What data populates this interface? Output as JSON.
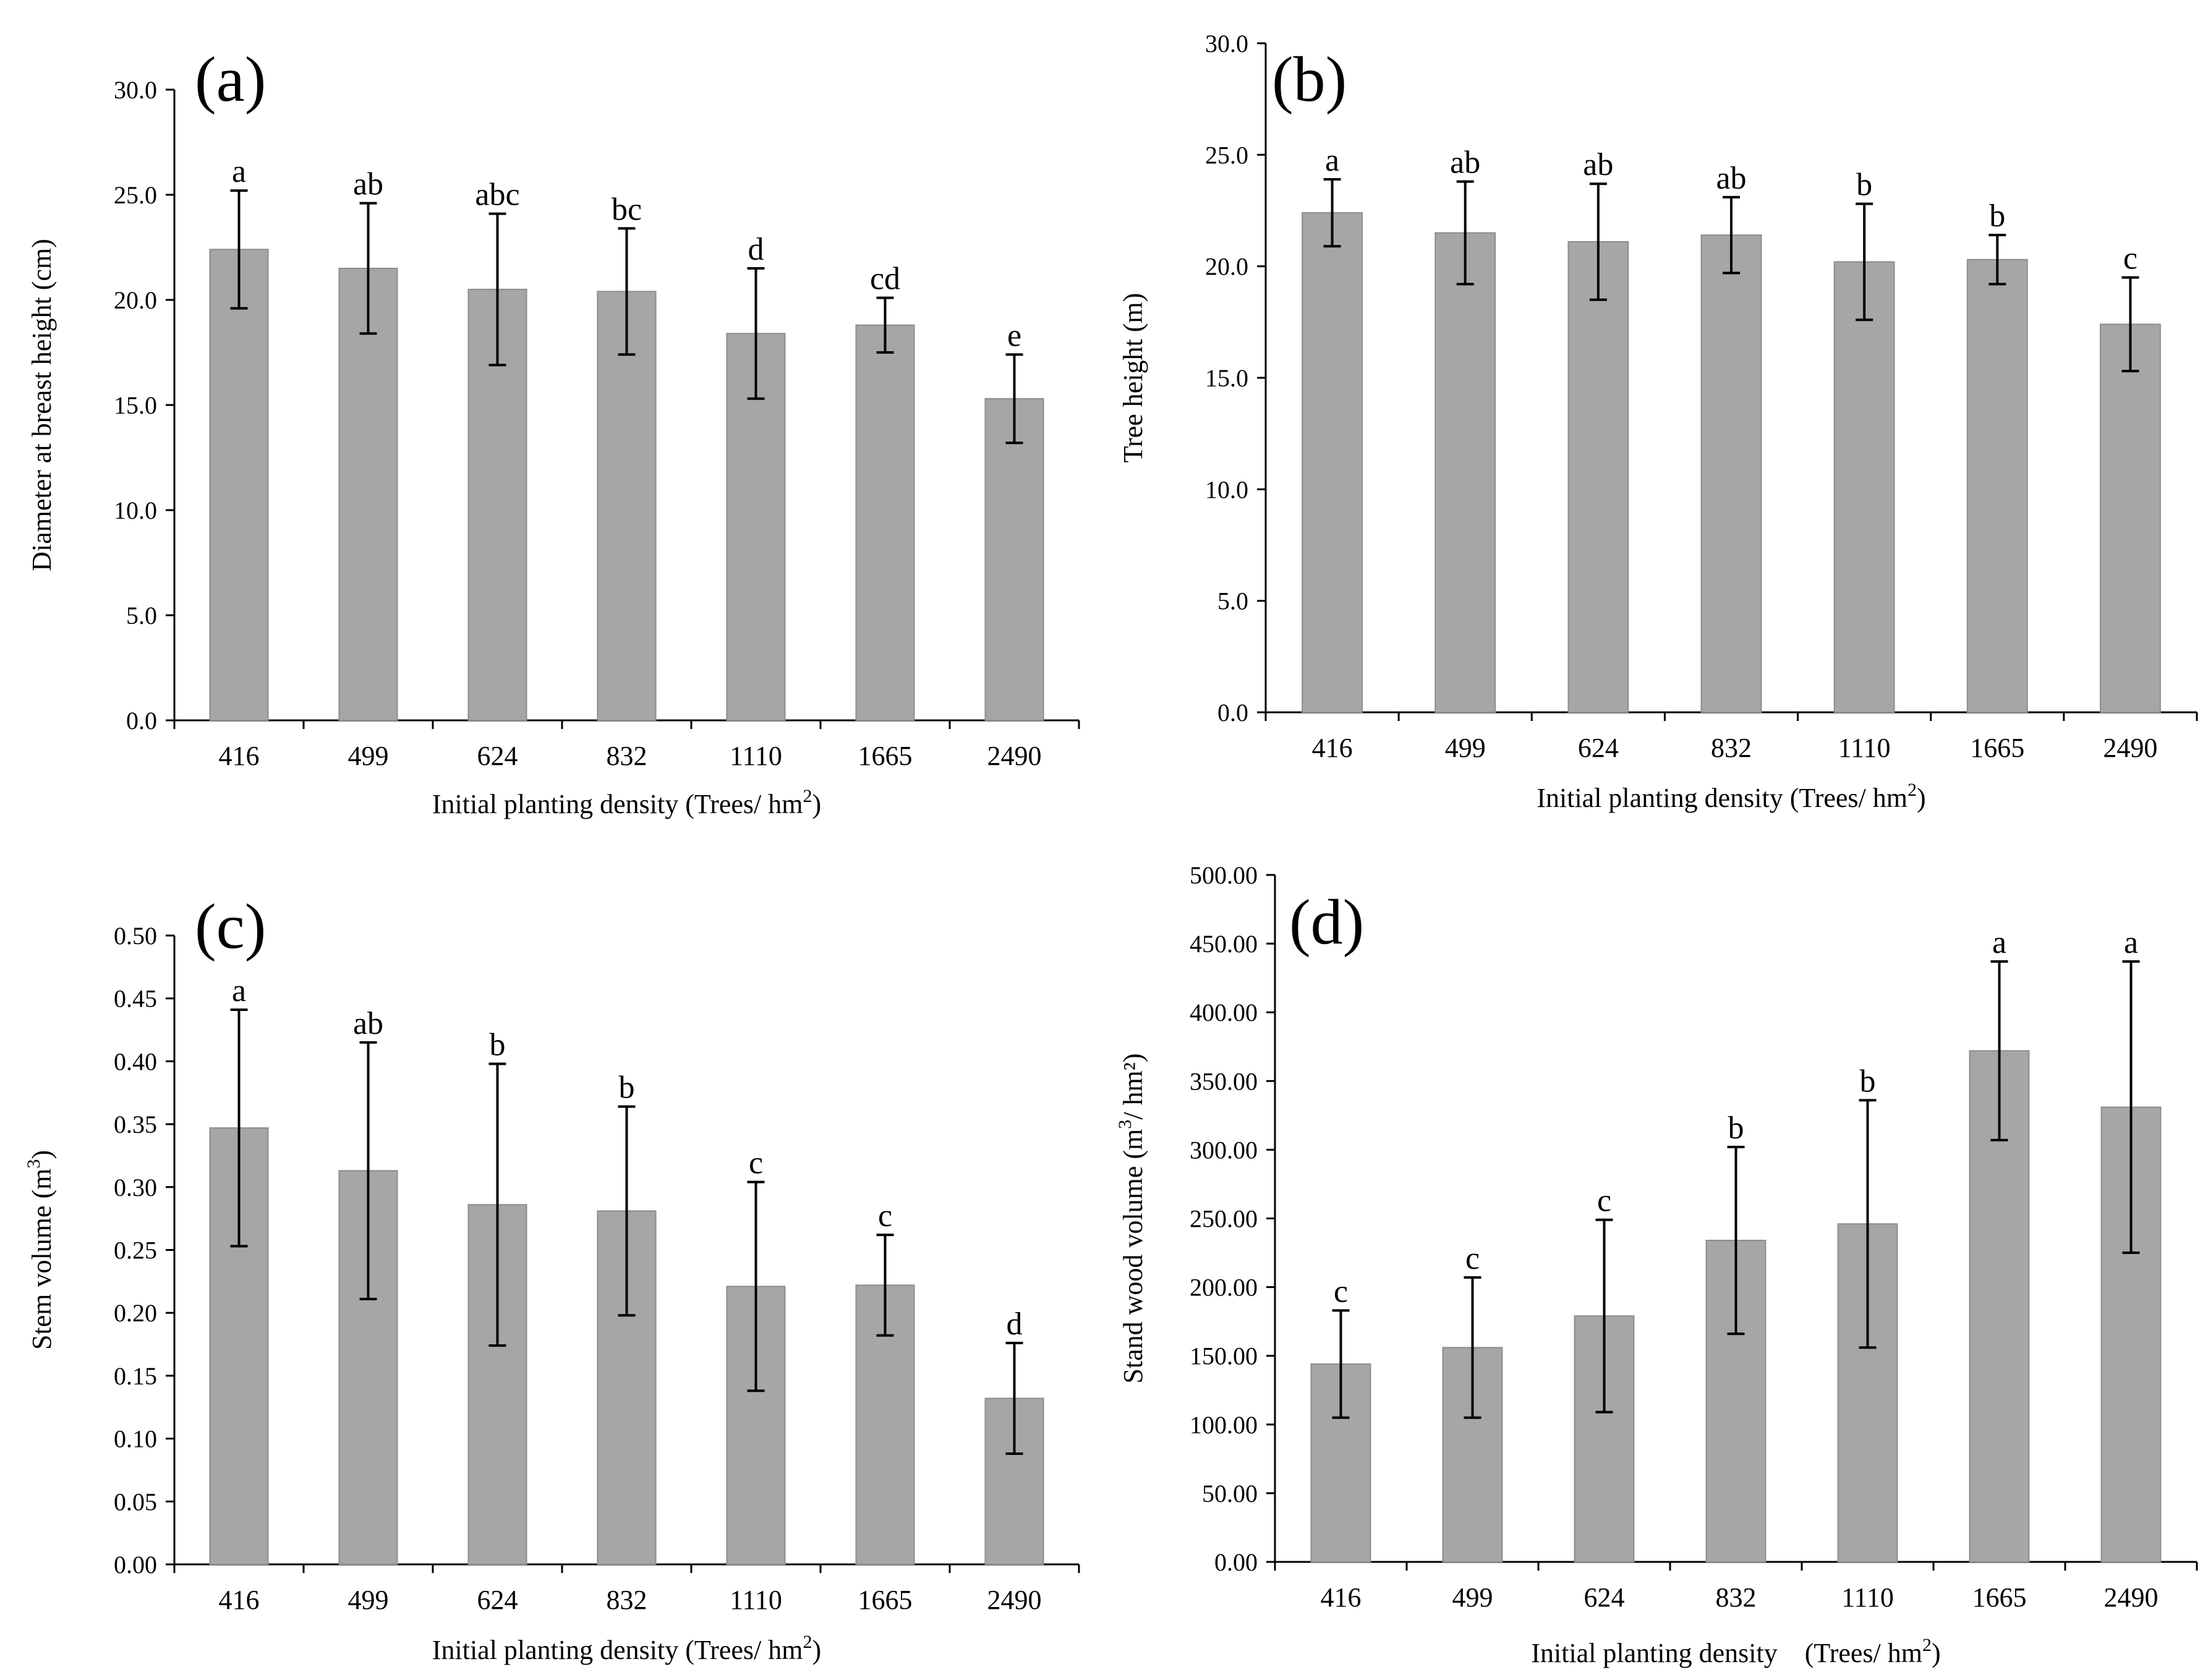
{
  "chart_data": [
    {
      "type": "bar",
      "panel_label": "(a)",
      "title": "",
      "xlabel": "Initial planting density (Trees/ hm",
      "xlabel_sup": "2",
      "xlabel_tail": ")",
      "ylabel": "Diameter at breast height (cm)",
      "ylabel_sup": "",
      "ylabel_tail": "",
      "categories": [
        "416",
        "499",
        "624",
        "832",
        "1110",
        "1665",
        "2490"
      ],
      "values": [
        22.4,
        21.5,
        20.5,
        20.4,
        18.4,
        18.8,
        15.3
      ],
      "errors": [
        2.8,
        3.1,
        3.6,
        3.0,
        3.1,
        1.3,
        2.1
      ],
      "significance": [
        "a",
        "ab",
        "abc",
        "bc",
        "d",
        "cd",
        "e"
      ],
      "ylim": [
        0,
        30
      ],
      "yticks": [
        "0.0",
        "5.0",
        "10.0",
        "15.0",
        "20.0",
        "25.0",
        "30.0"
      ],
      "bar_color": "#a6a6a6"
    },
    {
      "type": "bar",
      "panel_label": "(b)",
      "title": "",
      "xlabel": "Initial planting density (Trees/ hm",
      "xlabel_sup": "2",
      "xlabel_tail": ")",
      "ylabel": "Tree height (m)",
      "ylabel_sup": "",
      "ylabel_tail": "",
      "categories": [
        "416",
        "499",
        "624",
        "832",
        "1110",
        "1665",
        "2490"
      ],
      "values": [
        22.4,
        21.5,
        21.1,
        21.4,
        20.2,
        20.3,
        17.4
      ],
      "errors": [
        1.5,
        2.3,
        2.6,
        1.7,
        2.6,
        1.1,
        2.1
      ],
      "significance": [
        "a",
        "ab",
        "ab",
        "ab",
        "b",
        "b",
        "c"
      ],
      "ylim": [
        0,
        30
      ],
      "yticks": [
        "0.0",
        "5.0",
        "10.0",
        "15.0",
        "20.0",
        "25.0",
        "30.0"
      ],
      "bar_color": "#a6a6a6"
    },
    {
      "type": "bar",
      "panel_label": "(c)",
      "title": "",
      "xlabel": "Initial planting density (Trees/ hm",
      "xlabel_sup": "2",
      "xlabel_tail": ")",
      "ylabel": "Stem volume (m",
      "ylabel_sup": "3",
      "ylabel_tail": ")",
      "categories": [
        "416",
        "499",
        "624",
        "832",
        "1110",
        "1665",
        "2490"
      ],
      "values": [
        0.347,
        0.313,
        0.286,
        0.281,
        0.221,
        0.222,
        0.132
      ],
      "errors": [
        0.094,
        0.102,
        0.112,
        0.083,
        0.083,
        0.04,
        0.044
      ],
      "significance": [
        "a",
        "ab",
        "b",
        "b",
        "c",
        "c",
        "d"
      ],
      "ylim": [
        0,
        0.5
      ],
      "yticks": [
        "0.00",
        "0.05",
        "0.10",
        "0.15",
        "0.20",
        "0.25",
        "0.30",
        "0.35",
        "0.40",
        "0.45",
        "0.50"
      ],
      "bar_color": "#a6a6a6"
    },
    {
      "type": "bar",
      "panel_label": "(d)",
      "title": "",
      "xlabel": "Initial planting density (Trees/ hm",
      "xlabel_sup": "2",
      "xlabel_tail": ")",
      "ylabel": "Stand wood volume (m",
      "ylabel_sup": "3",
      "ylabel_tail": "/ hm²)",
      "categories": [
        "416",
        "499",
        "624",
        "832",
        "1110",
        "1665",
        "2490"
      ],
      "values": [
        144.0,
        156.0,
        179.0,
        234.0,
        246.0,
        372.0,
        331.0
      ],
      "errors": [
        39.0,
        51.0,
        70.0,
        68.0,
        90.0,
        65.0,
        106.0
      ],
      "significance": [
        "c",
        "c",
        "c",
        "b",
        "b",
        "a",
        "a"
      ],
      "ylim": [
        0,
        500
      ],
      "yticks": [
        "0.00",
        "50.00",
        "100.00",
        "150.00",
        "200.00",
        "250.00",
        "300.00",
        "350.00",
        "400.00",
        "450.00",
        "500.00"
      ],
      "bar_color": "#a6a6a6"
    }
  ]
}
